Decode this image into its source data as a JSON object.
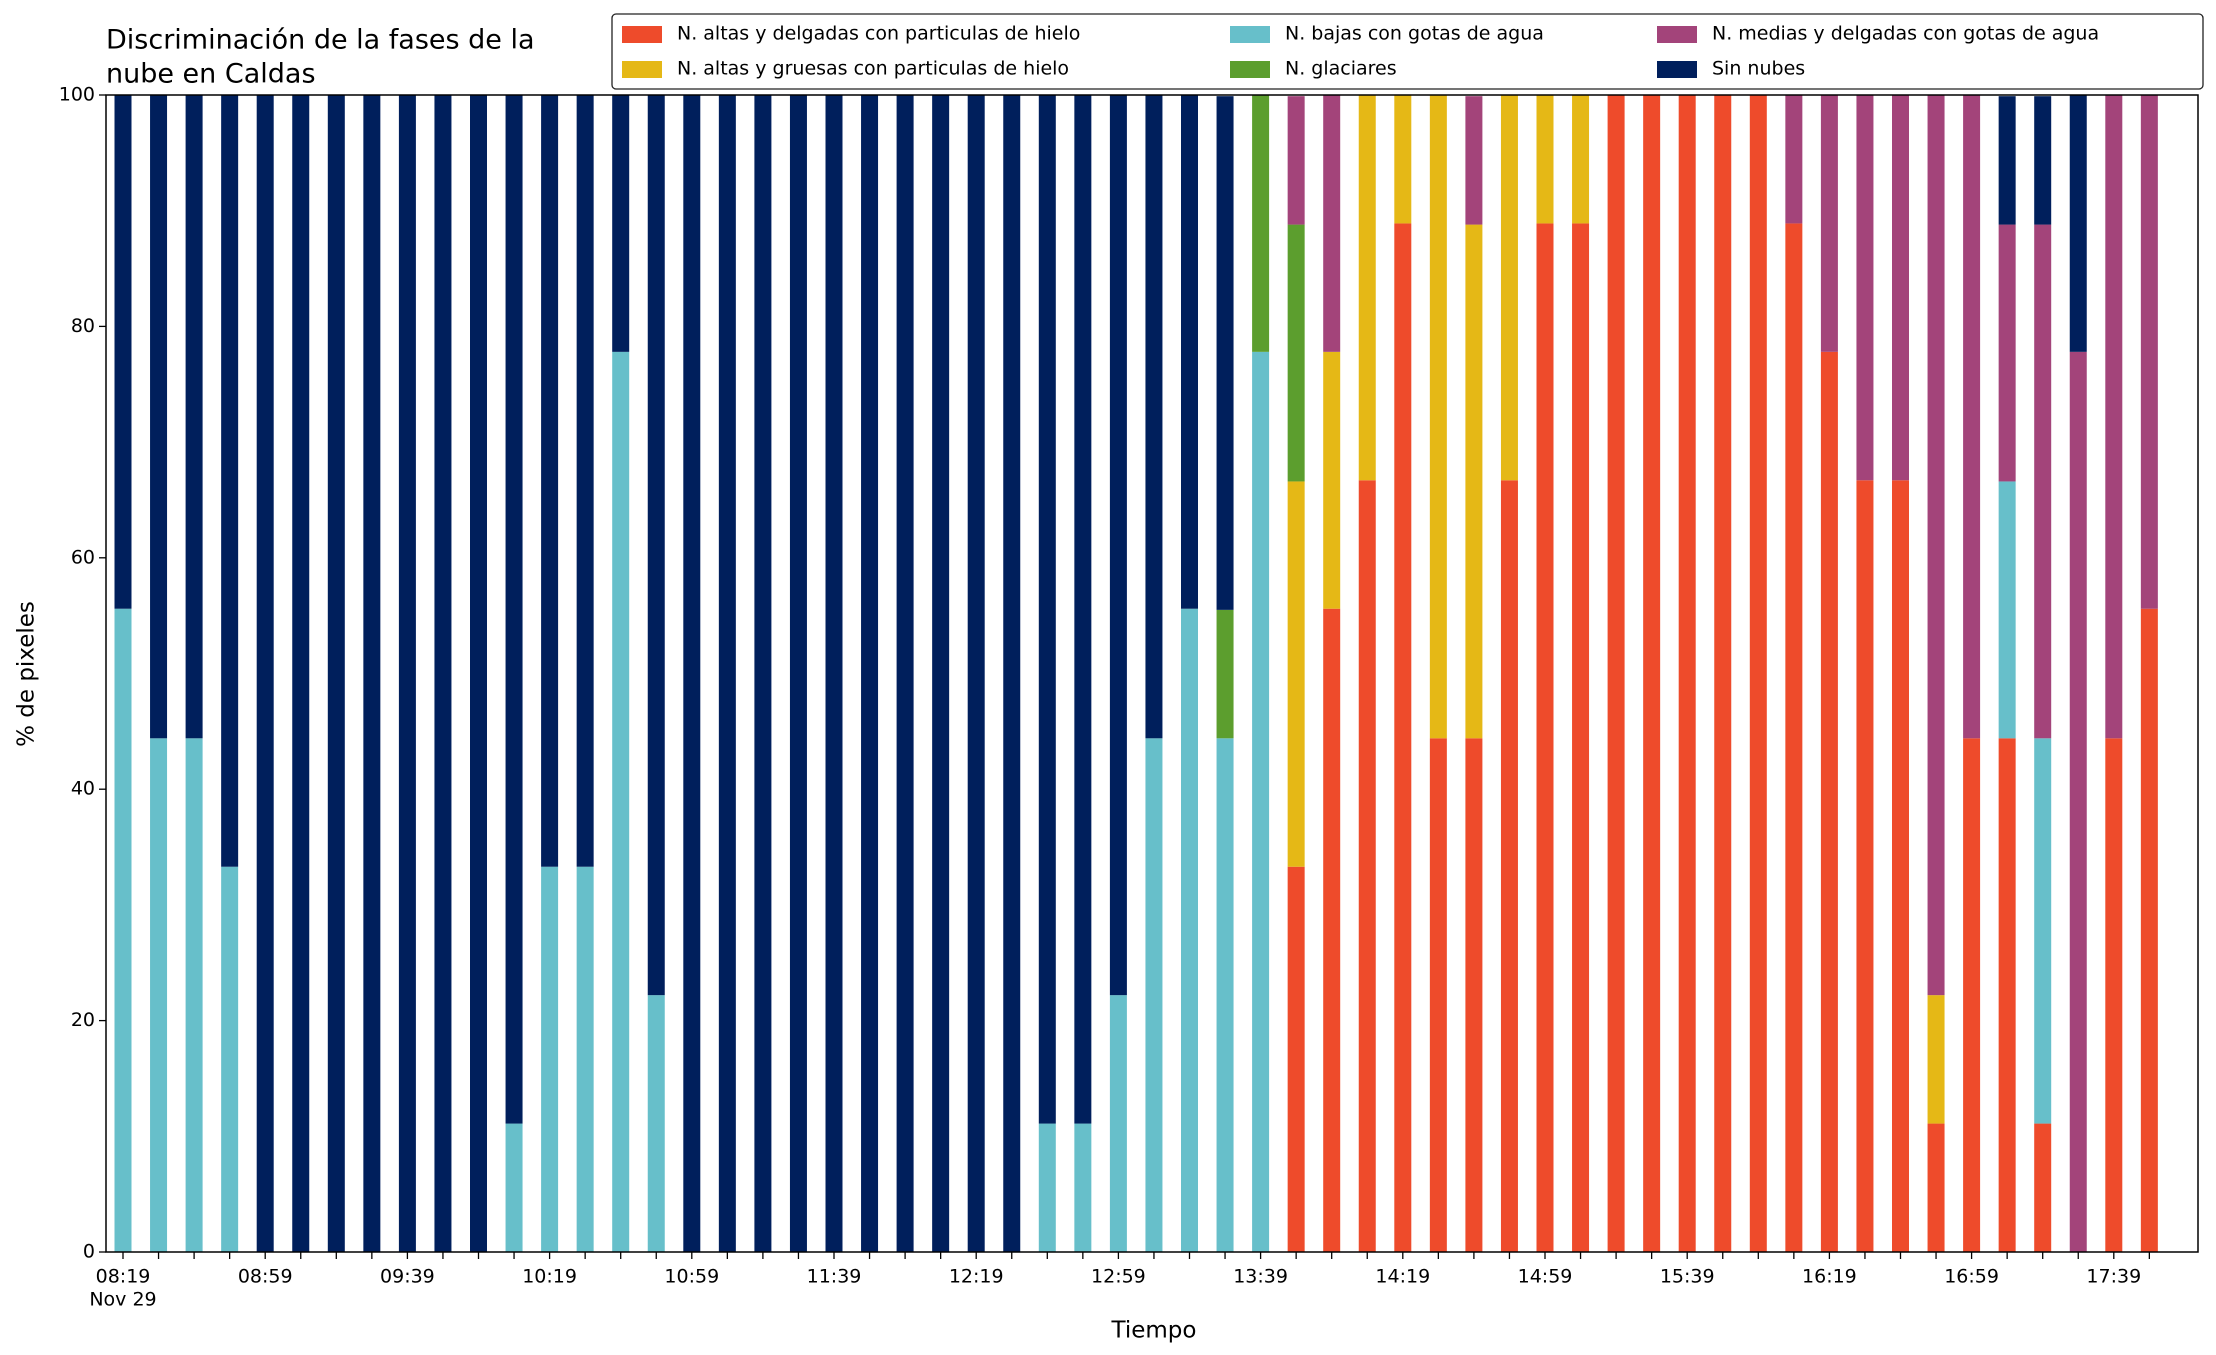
{
  "chart_data": {
    "type": "stacked_bar",
    "title": [
      "Discriminación de la fases de la",
      "nube en Caldas"
    ],
    "x_label": "Tiempo",
    "y_label": "% de pixeles",
    "x_date": "Nov 29",
    "categories": [
      "08:19",
      null,
      null,
      null,
      "08:59",
      null,
      null,
      null,
      "09:39",
      null,
      null,
      null,
      "10:19",
      null,
      null,
      null,
      "10:59",
      null,
      null,
      null,
      "11:39",
      null,
      null,
      null,
      "12:19",
      null,
      null,
      null,
      "12:59",
      null,
      null,
      null,
      "13:39",
      null,
      null,
      null,
      "14:19",
      null,
      null,
      null,
      "14:59",
      null,
      null,
      null,
      "15:39",
      null,
      null,
      null,
      "16:19",
      null,
      null,
      null,
      "16:59",
      null,
      null,
      null,
      "17:39",
      null
    ],
    "ylim": [
      0,
      100
    ],
    "yticks": [
      0,
      20,
      40,
      60,
      80,
      100
    ],
    "legend": "top-right",
    "series": [
      {
        "name": "N. altas y delgadas con particulas de hielo",
        "color": "#ee4b2b",
        "values": [
          0,
          0,
          0,
          0,
          0,
          0,
          0,
          0,
          0,
          0,
          0,
          0,
          0,
          0,
          0,
          0,
          0,
          0,
          0,
          0,
          0,
          0,
          0,
          0,
          0,
          0,
          0,
          0,
          0,
          0,
          0,
          0,
          0,
          33.3,
          55.6,
          66.7,
          88.9,
          44.4,
          44.4,
          66.7,
          88.9,
          88.9,
          100,
          100,
          100,
          100,
          100,
          88.9,
          77.8,
          66.7,
          66.7,
          11.1,
          44.4,
          44.4,
          11.1,
          0,
          44.4,
          55.6
        ]
      },
      {
        "name": "N. altas y gruesas con particulas de hielo",
        "color": "#e5b816",
        "values": [
          0,
          0,
          0,
          0,
          0,
          0,
          0,
          0,
          0,
          0,
          0,
          0,
          0,
          0,
          0,
          0,
          0,
          0,
          0,
          0,
          0,
          0,
          0,
          0,
          0,
          0,
          0,
          0,
          0,
          0,
          0,
          0,
          0,
          33.3,
          22.2,
          33.3,
          11.1,
          55.6,
          44.4,
          33.3,
          11.1,
          11.1,
          0,
          0,
          0,
          0,
          0,
          0,
          0,
          0,
          0,
          11.1,
          0,
          0,
          0,
          0,
          0,
          0
        ]
      },
      {
        "name": "N. bajas con gotas de agua",
        "color": "#67bfca",
        "values": [
          55.6,
          44.4,
          44.4,
          33.3,
          0,
          0,
          0,
          0,
          0,
          0,
          0,
          11.1,
          33.3,
          33.3,
          77.8,
          22.2,
          0,
          0,
          0,
          0,
          0,
          0,
          0,
          0,
          0,
          0,
          11.1,
          11.1,
          22.2,
          44.4,
          55.6,
          44.4,
          77.8,
          0,
          0,
          0,
          0,
          0,
          0,
          0,
          0,
          0,
          0,
          0,
          0,
          0,
          0,
          0,
          0,
          0,
          0,
          0,
          0,
          22.2,
          33.3,
          0,
          0,
          0
        ]
      },
      {
        "name": "N. glaciares",
        "color": "#5c9e2e",
        "values": [
          0,
          0,
          0,
          0,
          0,
          0,
          0,
          0,
          0,
          0,
          0,
          0,
          0,
          0,
          0,
          0,
          0,
          0,
          0,
          0,
          0,
          0,
          0,
          0,
          0,
          0,
          0,
          0,
          0,
          0,
          0,
          11.1,
          22.2,
          22.2,
          0,
          0,
          0,
          0,
          0,
          0,
          0,
          0,
          0,
          0,
          0,
          0,
          0,
          0,
          0,
          0,
          0,
          0,
          0,
          0,
          0,
          0,
          0,
          0
        ]
      },
      {
        "name": "N. medias y delgadas con gotas de agua",
        "color": "#a3447a",
        "values": [
          0,
          0,
          0,
          0,
          0,
          0,
          0,
          0,
          0,
          0,
          0,
          0,
          0,
          0,
          0,
          0,
          0,
          0,
          0,
          0,
          0,
          0,
          0,
          0,
          0,
          0,
          0,
          0,
          0,
          0,
          0,
          0,
          0,
          11.1,
          22.2,
          0,
          0,
          0,
          11.1,
          0,
          0,
          0,
          0,
          0,
          0,
          0,
          0,
          11.1,
          22.2,
          33.3,
          33.3,
          77.8,
          55.6,
          22.2,
          44.4,
          77.8,
          55.6,
          44.4
        ]
      },
      {
        "name": "Sin nubes",
        "color": "#001f5c",
        "values": [
          44.4,
          55.6,
          55.6,
          66.7,
          100,
          100,
          100,
          100,
          100,
          100,
          100,
          88.9,
          66.7,
          66.7,
          22.2,
          77.8,
          100,
          100,
          100,
          100,
          100,
          100,
          100,
          100,
          100,
          100,
          88.9,
          88.9,
          77.8,
          55.6,
          44.4,
          44.4,
          0,
          0,
          0,
          0,
          0,
          0,
          0,
          0,
          0,
          0,
          0,
          0,
          0,
          0,
          0,
          0,
          0,
          0,
          0,
          0,
          0,
          11.1,
          11.1,
          22.2,
          0,
          0
        ]
      }
    ]
  }
}
